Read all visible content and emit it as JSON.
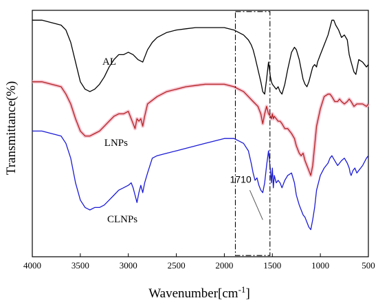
{
  "chart_data": {
    "type": "line",
    "xlabel": "Wavenumber[cm",
    "xlabel_sup": "-1",
    "xlabel_end": "]",
    "ylabel": "Transmittance(%)",
    "xlim": [
      4000,
      500
    ],
    "x_reversed": true,
    "ylim": [
      0,
      100
    ],
    "y_tick_labels": false,
    "grid": false,
    "x_ticks": [
      4000,
      3500,
      3000,
      2500,
      2000,
      1500,
      1000,
      500
    ],
    "x_tick_labels": [
      "4000",
      "3500",
      "3000",
      "2500",
      "2000",
      "1500",
      "1000",
      "500"
    ],
    "colors": {
      "AL": "#000000",
      "LNPs": "#b22222",
      "CLNPs": "#1a1ad6",
      "LNPs_band": "#f5b8c8"
    },
    "series": [
      {
        "name": "AL",
        "x": [
          4000,
          3900,
          3800,
          3700,
          3650,
          3600,
          3550,
          3500,
          3450,
          3400,
          3350,
          3300,
          3250,
          3200,
          3150,
          3100,
          3050,
          3000,
          2950,
          2900,
          2850,
          2800,
          2750,
          2700,
          2600,
          2500,
          2400,
          2300,
          2200,
          2100,
          2000,
          1900,
          1850,
          1800,
          1750,
          1720,
          1700,
          1680,
          1650,
          1620,
          1600,
          1580,
          1560,
          1540,
          1520,
          1510,
          1500,
          1480,
          1460,
          1440,
          1420,
          1400,
          1370,
          1340,
          1300,
          1270,
          1250,
          1220,
          1200,
          1180,
          1160,
          1140,
          1120,
          1100,
          1080,
          1060,
          1040,
          1030,
          1000,
          960,
          920,
          900,
          880,
          860,
          840,
          810,
          780,
          750,
          720,
          700,
          680,
          650,
          630,
          600,
          560,
          520,
          500
        ],
        "y": [
          96,
          96,
          95,
          94,
          92,
          87,
          79,
          71,
          68,
          67,
          68,
          70,
          73,
          77,
          80,
          82,
          82,
          83,
          82,
          80,
          79,
          84,
          87,
          89,
          91,
          92,
          92.5,
          93,
          93,
          93,
          93,
          92,
          91,
          90,
          88,
          86,
          84,
          81,
          76,
          71,
          67,
          66,
          72,
          79,
          73,
          71,
          70,
          69,
          68,
          69,
          67,
          66,
          70,
          76,
          83,
          85,
          84,
          80,
          76,
          72,
          70,
          69,
          71,
          74,
          77,
          78,
          77,
          79,
          82,
          86,
          90,
          93,
          96,
          96,
          94,
          92,
          89,
          90,
          88,
          82,
          79,
          75,
          74,
          80,
          79,
          77,
          78
        ]
      },
      {
        "name": "LNPs",
        "x": [
          4000,
          3900,
          3800,
          3700,
          3650,
          3600,
          3550,
          3500,
          3450,
          3400,
          3350,
          3300,
          3250,
          3200,
          3150,
          3100,
          3050,
          3000,
          2970,
          2950,
          2930,
          2910,
          2890,
          2870,
          2850,
          2830,
          2800,
          2700,
          2600,
          2500,
          2400,
          2300,
          2200,
          2100,
          2000,
          1900,
          1850,
          1800,
          1750,
          1700,
          1650,
          1620,
          1600,
          1580,
          1560,
          1540,
          1520,
          1510,
          1500,
          1490,
          1480,
          1460,
          1440,
          1420,
          1400,
          1370,
          1340,
          1300,
          1270,
          1250,
          1220,
          1200,
          1180,
          1160,
          1140,
          1120,
          1100,
          1080,
          1060,
          1040,
          1000,
          960,
          920,
          900,
          880,
          850,
          820,
          800,
          780,
          750,
          720,
          700,
          680,
          650,
          620,
          600,
          560,
          520,
          500
        ],
        "y": [
          71,
          71,
          70,
          69,
          66,
          62,
          56,
          51,
          49,
          49,
          50,
          51,
          53,
          55,
          57,
          58,
          58,
          59,
          56,
          54,
          52,
          56,
          55,
          56,
          53,
          57,
          62,
          65,
          67,
          68,
          69,
          69.5,
          70,
          70,
          70,
          69,
          68,
          67,
          65,
          63,
          61,
          58,
          54,
          58,
          61,
          58,
          57,
          56,
          58,
          56,
          57,
          56,
          55,
          55,
          54,
          52,
          52,
          50,
          48,
          45,
          42,
          41,
          42,
          39,
          37,
          35,
          33,
          37,
          45,
          53,
          60,
          65,
          66,
          66,
          65,
          63,
          63,
          64,
          63,
          62,
          63,
          64,
          63,
          61,
          62,
          62,
          62,
          61,
          62
        ]
      },
      {
        "name": "CLNPs",
        "x": [
          4000,
          3900,
          3800,
          3700,
          3650,
          3600,
          3550,
          3500,
          3450,
          3400,
          3350,
          3300,
          3250,
          3200,
          3150,
          3100,
          3050,
          3000,
          2970,
          2950,
          2930,
          2910,
          2890,
          2870,
          2850,
          2830,
          2800,
          2750,
          2700,
          2600,
          2500,
          2400,
          2300,
          2200,
          2100,
          2000,
          1900,
          1850,
          1800,
          1750,
          1720,
          1710,
          1700,
          1680,
          1660,
          1640,
          1620,
          1600,
          1580,
          1560,
          1540,
          1520,
          1510,
          1500,
          1490,
          1480,
          1460,
          1440,
          1420,
          1400,
          1370,
          1340,
          1300,
          1270,
          1250,
          1220,
          1200,
          1180,
          1160,
          1140,
          1120,
          1100,
          1080,
          1060,
          1040,
          1000,
          960,
          920,
          900,
          880,
          850,
          820,
          780,
          750,
          720,
          700,
          690,
          680,
          660,
          640,
          620,
          600,
          580,
          560,
          520,
          500
        ],
        "y": [
          51,
          51,
          50,
          49,
          46,
          40,
          30,
          23,
          20,
          19,
          20,
          20,
          21,
          23,
          25,
          27,
          28,
          29,
          30,
          28,
          25,
          22,
          26,
          29,
          26,
          30,
          34,
          40,
          41,
          42,
          43,
          44,
          45,
          46,
          47,
          48,
          48,
          47,
          46,
          43,
          38,
          36,
          34,
          31,
          32,
          29,
          27,
          26,
          30,
          37,
          43,
          35,
          30,
          36,
          28,
          33,
          30,
          31,
          30,
          28,
          31,
          33,
          34,
          30,
          25,
          21,
          19,
          17,
          16,
          14,
          12,
          11,
          15,
          20,
          27,
          33,
          36,
          38,
          40,
          41,
          39,
          37,
          39,
          40,
          38,
          36,
          34,
          33,
          35,
          36,
          34,
          35,
          36,
          37,
          40,
          41
        ]
      }
    ],
    "labels": [
      {
        "text": "AL",
        "series": "AL",
        "x": 3270,
        "y": 78
      },
      {
        "text": "LNPs",
        "series": "LNPs",
        "x": 3250,
        "y": 45
      },
      {
        "text": "CLNPs",
        "series": "CLNPs",
        "x": 3220,
        "y": 14
      }
    ],
    "annotation": {
      "text": "1710",
      "label_x": 1830,
      "label_y": 30,
      "line_from": [
        1735,
        27
      ],
      "line_to": [
        1600,
        15
      ]
    },
    "dashed_box": {
      "x0": 1885,
      "x1": 1525,
      "y0": 0.5,
      "y1": 99.5
    }
  }
}
